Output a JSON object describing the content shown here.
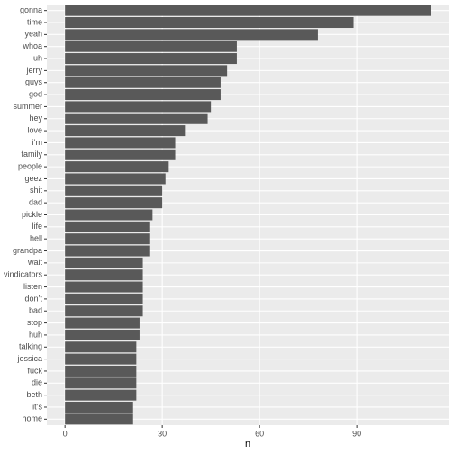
{
  "chart_data": {
    "type": "bar",
    "orientation": "horizontal",
    "x_label": "n",
    "categories": [
      "gonna",
      "time",
      "yeah",
      "whoa",
      "uh",
      "jerry",
      "guys",
      "god",
      "summer",
      "hey",
      "love",
      "i’m",
      "family",
      "people",
      "geez",
      "shit",
      "dad",
      "pickle",
      "life",
      "hell",
      "grandpa",
      "wait",
      "vindicators",
      "listen",
      "don’t",
      "bad",
      "stop",
      "huh",
      "talking",
      "jessica",
      "fuck",
      "die",
      "beth",
      "it’s",
      "home"
    ],
    "values": [
      113,
      89,
      78,
      53,
      53,
      50,
      48,
      48,
      45,
      44,
      37,
      34,
      34,
      32,
      31,
      30,
      30,
      27,
      26,
      26,
      26,
      24,
      24,
      24,
      24,
      24,
      23,
      23,
      22,
      22,
      22,
      22,
      22,
      21,
      21
    ],
    "color": "#595959",
    "xlim": [
      -5.6,
      118.3
    ],
    "xticks": [
      0,
      30,
      60,
      90
    ],
    "grid": true
  }
}
